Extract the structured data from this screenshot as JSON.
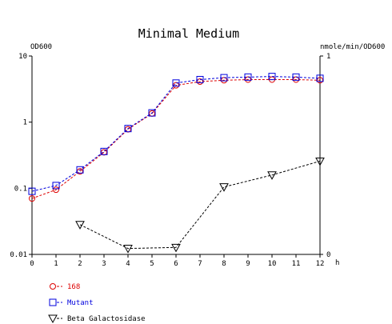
{
  "chart_data": {
    "type": "line",
    "title": "Minimal Medium",
    "x_axis": {
      "unit_label": "h",
      "range": [
        0,
        12
      ],
      "ticks": [
        "0",
        "1",
        "2",
        "3",
        "4",
        "5",
        "6",
        "7",
        "8",
        "9",
        "10",
        "11",
        "12"
      ],
      "tick_values": [
        0,
        1,
        2,
        3,
        4,
        5,
        6,
        7,
        8,
        9,
        10,
        11,
        12
      ]
    },
    "y_left": {
      "label": "OD600",
      "scale": "log",
      "range": [
        0.01,
        10
      ],
      "ticks": [
        "10",
        "1",
        "0.1",
        "0.01"
      ],
      "tick_values": [
        10,
        1,
        0.1,
        0.01
      ]
    },
    "y_right": {
      "label": "nmole/min/OD600",
      "scale": "linear",
      "range": [
        0,
        1
      ],
      "ticks": [
        "1",
        "0"
      ],
      "tick_values": [
        1,
        0
      ]
    },
    "grid": false,
    "legend_position": "bottom-left",
    "series": [
      {
        "name": "168",
        "axis": "left",
        "marker": "circle",
        "color": "#dd0000",
        "line_style": "dashed",
        "x": [
          0,
          1,
          2,
          3,
          4,
          5,
          6,
          7,
          8,
          9,
          10,
          11,
          12
        ],
        "y": [
          0.07,
          0.095,
          0.18,
          0.35,
          0.78,
          1.35,
          3.6,
          4.1,
          4.3,
          4.4,
          4.4,
          4.4,
          4.3
        ]
      },
      {
        "name": "Mutant",
        "axis": "left",
        "marker": "square",
        "color": "#0000dd",
        "line_style": "dashed",
        "x": [
          0,
          1,
          2,
          3,
          4,
          5,
          6,
          7,
          8,
          9,
          10,
          11,
          12
        ],
        "y": [
          0.09,
          0.11,
          0.19,
          0.36,
          0.8,
          1.38,
          3.9,
          4.4,
          4.7,
          4.8,
          4.9,
          4.8,
          4.6
        ]
      },
      {
        "name": "Beta Galactosidase",
        "axis": "right",
        "marker": "triangle-down",
        "color": "#000000",
        "line_style": "dashed",
        "x": [
          2,
          4,
          6,
          8,
          10,
          12
        ],
        "y": [
          0.15,
          0.03,
          0.035,
          0.34,
          0.4,
          0.47
        ]
      }
    ]
  }
}
